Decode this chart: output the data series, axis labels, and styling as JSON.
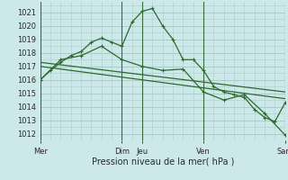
{
  "background_color": "#cce8e8",
  "grid_color": "#aacccc",
  "line_color": "#2d6a2d",
  "marker_color": "#2d6a2d",
  "xlabel": "Pression niveau de la mer( hPa )",
  "ylim": [
    1011.5,
    1021.8
  ],
  "yticks": [
    1012,
    1013,
    1014,
    1015,
    1016,
    1017,
    1018,
    1019,
    1020,
    1021
  ],
  "xtick_labels": [
    "Mer",
    "Dim",
    "Jeu",
    "Ven",
    "Sam"
  ],
  "xtick_positions": [
    0,
    4,
    5,
    8,
    12
  ],
  "vlines": [
    0,
    4,
    5,
    8,
    12
  ],
  "series1_x": [
    0,
    0.5,
    1,
    1.5,
    2,
    2.5,
    3,
    3.5,
    4,
    4.5,
    5,
    5.5,
    6,
    6.5,
    7,
    7.5,
    8,
    8.5,
    9,
    9.5,
    10,
    10.5,
    11,
    11.5,
    12
  ],
  "series1_y": [
    1016.0,
    1016.7,
    1017.3,
    1017.8,
    1018.1,
    1018.8,
    1019.1,
    1018.8,
    1018.5,
    1020.3,
    1021.1,
    1021.3,
    1020.0,
    1019.0,
    1017.5,
    1017.5,
    1016.7,
    1015.5,
    1015.1,
    1014.9,
    1014.7,
    1013.8,
    1013.2,
    1012.9,
    1014.3
  ],
  "series2_x": [
    0,
    1,
    2,
    3,
    4,
    5,
    6,
    7,
    8,
    9,
    10,
    11,
    12
  ],
  "series2_y": [
    1016.0,
    1017.5,
    1017.8,
    1018.5,
    1017.5,
    1017.0,
    1016.7,
    1016.8,
    1015.1,
    1014.5,
    1014.9,
    1013.5,
    1011.9
  ],
  "series3_x": [
    0,
    12
  ],
  "series3_y": [
    1017.3,
    1015.1
  ],
  "series4_x": [
    0,
    12
  ],
  "series4_y": [
    1017.0,
    1014.6
  ],
  "figsize": [
    3.2,
    2.0
  ],
  "dpi": 100
}
